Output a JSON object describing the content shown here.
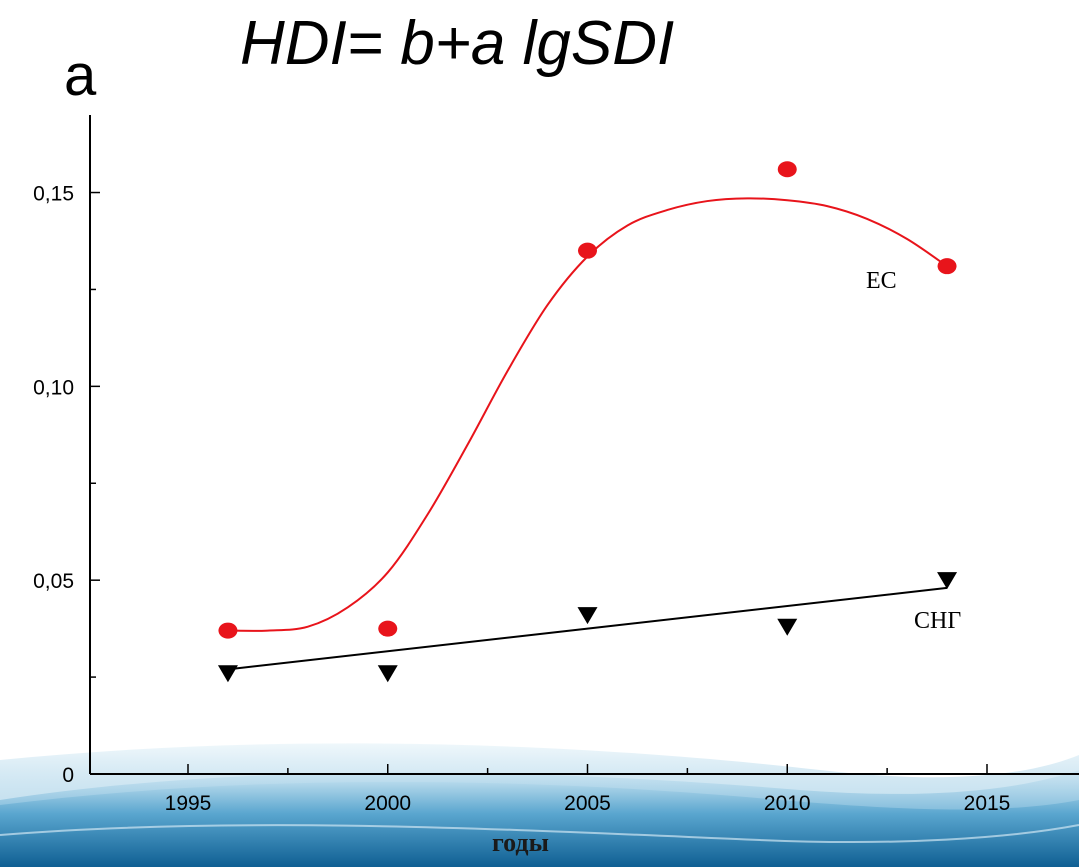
{
  "chart_data": {
    "type": "scatter",
    "panel_letter": "a",
    "title": "HDI= b+a lgSDI",
    "xlabel": "годы",
    "ylabel": "",
    "xlim": [
      1992,
      2017
    ],
    "ylim": [
      0,
      0.17
    ],
    "xticks": [
      1995,
      2000,
      2005,
      2010,
      2015
    ],
    "xtick_labels": [
      "1995",
      "2000",
      "2005",
      "2010",
      "2015"
    ],
    "yticks": [
      0,
      0.05,
      0.1,
      0.15
    ],
    "ytick_labels": [
      "0",
      "0,05",
      "0,10",
      "0,15"
    ],
    "grid": false,
    "series": [
      {
        "name": "ЕС",
        "color": "#e8141b",
        "marker": "circle",
        "x": [
          1996,
          2000,
          2005,
          2010,
          2014
        ],
        "y": [
          0.037,
          0.0375,
          0.135,
          0.156,
          0.131
        ],
        "fit": "smooth",
        "fit_curve": {
          "x": [
            1996,
            1997,
            1998,
            1999,
            2000,
            2001,
            2002,
            2003,
            2004,
            2005,
            2006,
            2007,
            2008,
            2009,
            2010,
            2011,
            2012,
            2013,
            2014
          ],
          "y": [
            0.037,
            0.037,
            0.038,
            0.043,
            0.052,
            0.067,
            0.085,
            0.104,
            0.121,
            0.1335,
            0.1415,
            0.1455,
            0.1478,
            0.1485,
            0.148,
            0.1465,
            0.1432,
            0.138,
            0.131
          ]
        }
      },
      {
        "name": "СНГ",
        "color": "#000000",
        "marker": "triangle-down",
        "x": [
          1996,
          2000,
          2005,
          2010,
          2014
        ],
        "y": [
          0.026,
          0.026,
          0.041,
          0.038,
          0.05
        ],
        "fit": "linear",
        "fit_curve": {
          "x": [
            1996,
            2014
          ],
          "y": [
            0.027,
            0.048
          ]
        }
      }
    ]
  }
}
